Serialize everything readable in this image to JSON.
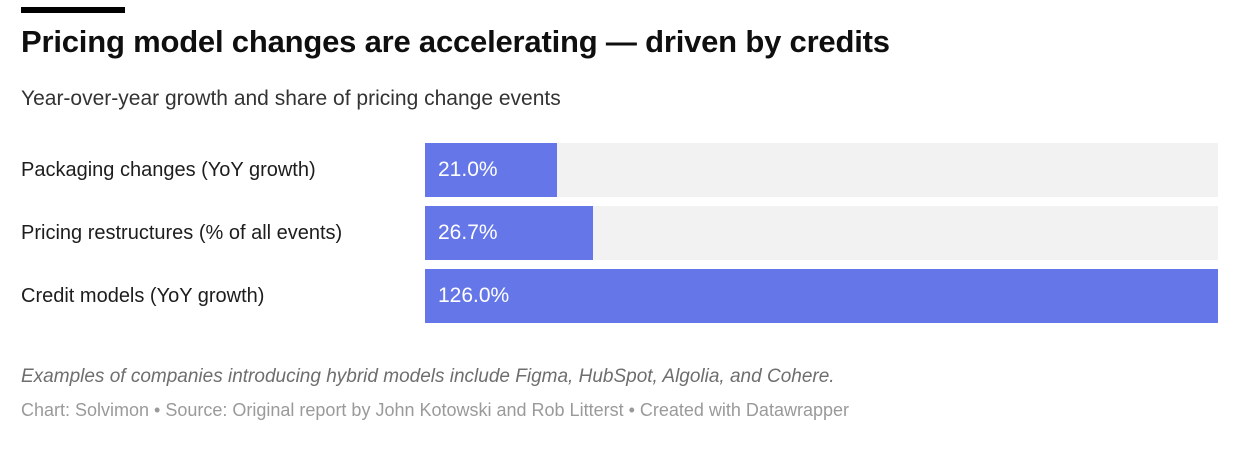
{
  "accent": {
    "bar_color": "#000000"
  },
  "header": {
    "title": "Pricing model changes are accelerating — driven by credits",
    "subtitle": "Year-over-year growth and share of pricing change events"
  },
  "chart_data": {
    "type": "bar",
    "orientation": "horizontal",
    "title": "Pricing model changes are accelerating — driven by credits",
    "subtitle": "Year-over-year growth and share of pricing change events",
    "categories": [
      "Packaging changes (YoY growth)",
      "Pricing restructures (% of all events)",
      "Credit models (YoY growth)"
    ],
    "values": [
      21.0,
      26.7,
      126.0
    ],
    "value_labels": [
      "21.0%",
      "26.7%",
      "126.0%"
    ],
    "xlim": [
      0,
      126.0
    ],
    "grid": false,
    "legend": "none",
    "bar_color": "#6577e8",
    "track_color": "#f2f2f2",
    "value_label_color": "#ffffff"
  },
  "footer": {
    "note": "Examples of companies introducing hybrid models include Figma, HubSpot, Algolia, and Cohere.",
    "byline": "Chart: Solvimon • Source: Original report by John Kotowski and Rob Litterst • Created with Datawrapper"
  }
}
